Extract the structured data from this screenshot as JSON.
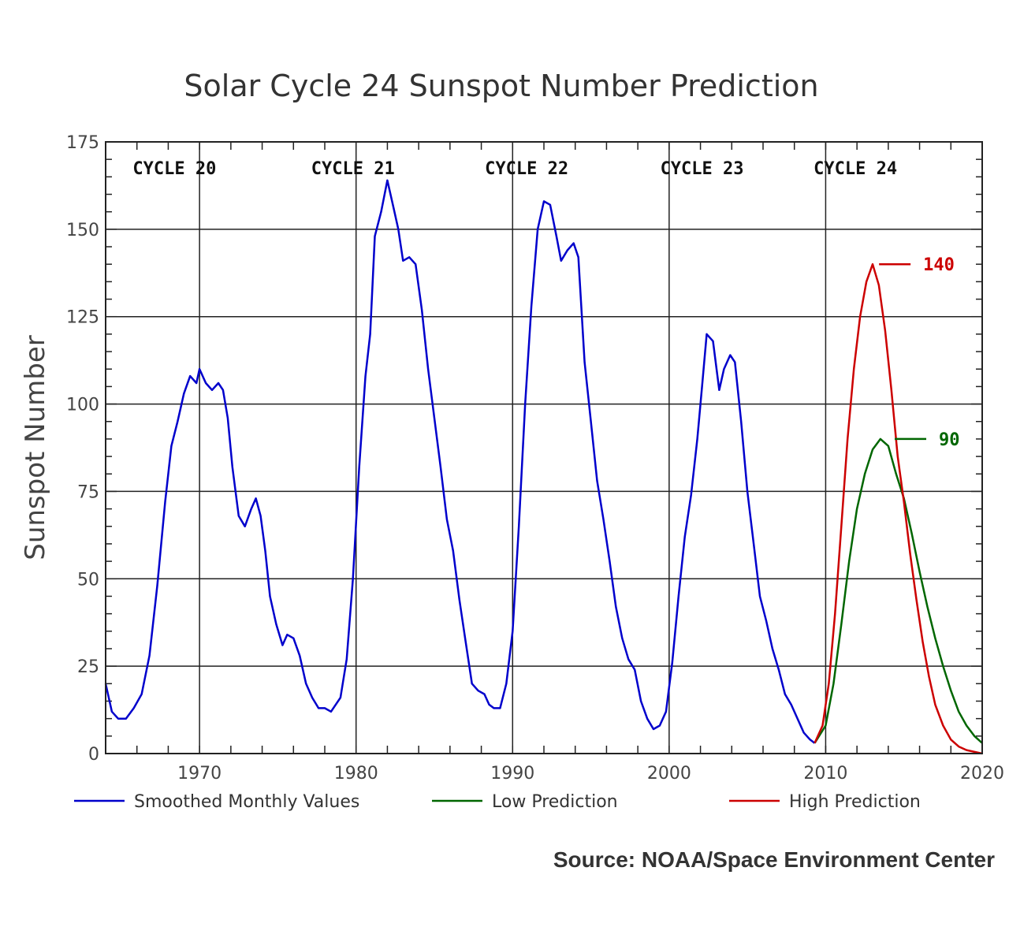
{
  "chart_data": {
    "type": "line",
    "title": "Solar Cycle 24 Sunspot Number Prediction",
    "ylabel": "Sunspot Number",
    "xlim": [
      1964,
      2020
    ],
    "ylim": [
      0,
      175
    ],
    "x_ticks": [
      "1970",
      "1980",
      "1990",
      "2000",
      "2010",
      "2020"
    ],
    "y_ticks": [
      "175",
      "150",
      "125",
      "100",
      "75",
      "50",
      "25",
      "0"
    ],
    "grid": true,
    "legend_position": "bottom",
    "cycle_labels": [
      {
        "text": "CYCLE 20",
        "x": 1968.4
      },
      {
        "text": "CYCLE 21",
        "x": 1979.8
      },
      {
        "text": "CYCLE 22",
        "x": 1990.9
      },
      {
        "text": "CYCLE 23",
        "x": 2002.1
      },
      {
        "text": "CYCLE 24",
        "x": 2011.9
      }
    ],
    "annotations": [
      {
        "text": "140",
        "x": 2011.9,
        "y": 140,
        "color": "#cc0000"
      },
      {
        "text": "90",
        "x": 2012.9,
        "y": 90,
        "color": "#006600"
      }
    ],
    "series": [
      {
        "name": "Smoothed Monthly Values",
        "color": "#0000cc",
        "points": [
          [
            1964.0,
            20
          ],
          [
            1964.4,
            12
          ],
          [
            1964.8,
            10
          ],
          [
            1965.3,
            10
          ],
          [
            1965.8,
            13
          ],
          [
            1966.3,
            17
          ],
          [
            1966.8,
            28
          ],
          [
            1967.3,
            48
          ],
          [
            1967.8,
            72
          ],
          [
            1968.2,
            88
          ],
          [
            1968.6,
            95
          ],
          [
            1969.0,
            103
          ],
          [
            1969.4,
            108
          ],
          [
            1969.8,
            106
          ],
          [
            1970.0,
            110
          ],
          [
            1970.4,
            106
          ],
          [
            1970.8,
            104
          ],
          [
            1971.2,
            106
          ],
          [
            1971.5,
            104
          ],
          [
            1971.8,
            96
          ],
          [
            1972.1,
            82
          ],
          [
            1972.5,
            68
          ],
          [
            1972.9,
            65
          ],
          [
            1973.3,
            70
          ],
          [
            1973.6,
            73
          ],
          [
            1973.9,
            68
          ],
          [
            1974.2,
            58
          ],
          [
            1974.5,
            45
          ],
          [
            1974.9,
            37
          ],
          [
            1975.3,
            31
          ],
          [
            1975.6,
            34
          ],
          [
            1976.0,
            33
          ],
          [
            1976.4,
            28
          ],
          [
            1976.8,
            20
          ],
          [
            1977.2,
            16
          ],
          [
            1977.6,
            13
          ],
          [
            1978.0,
            13
          ],
          [
            1978.4,
            12
          ],
          [
            1978.7,
            14
          ],
          [
            1979.0,
            16
          ],
          [
            1979.4,
            27
          ],
          [
            1979.8,
            50
          ],
          [
            1980.2,
            82
          ],
          [
            1980.6,
            108
          ],
          [
            1980.9,
            120
          ],
          [
            1981.2,
            148
          ],
          [
            1981.6,
            155
          ],
          [
            1982.0,
            164
          ],
          [
            1982.4,
            156
          ],
          [
            1982.7,
            150
          ],
          [
            1983.0,
            141
          ],
          [
            1983.4,
            142
          ],
          [
            1983.8,
            140
          ],
          [
            1984.2,
            127
          ],
          [
            1984.6,
            110
          ],
          [
            1985.0,
            96
          ],
          [
            1985.4,
            82
          ],
          [
            1985.8,
            67
          ],
          [
            1986.2,
            58
          ],
          [
            1986.6,
            44
          ],
          [
            1987.0,
            32
          ],
          [
            1987.4,
            20
          ],
          [
            1987.8,
            18
          ],
          [
            1988.2,
            17
          ],
          [
            1988.5,
            14
          ],
          [
            1988.8,
            13
          ],
          [
            1989.2,
            13
          ],
          [
            1989.6,
            20
          ],
          [
            1990.0,
            35
          ],
          [
            1990.4,
            65
          ],
          [
            1990.8,
            100
          ],
          [
            1991.2,
            128
          ],
          [
            1991.6,
            150
          ],
          [
            1992.0,
            158
          ],
          [
            1992.4,
            157
          ],
          [
            1992.8,
            148
          ],
          [
            1993.1,
            141
          ],
          [
            1993.5,
            144
          ],
          [
            1993.9,
            146
          ],
          [
            1994.2,
            142
          ],
          [
            1994.6,
            112
          ],
          [
            1995.0,
            95
          ],
          [
            1995.4,
            78
          ],
          [
            1995.8,
            67
          ],
          [
            1996.2,
            55
          ],
          [
            1996.6,
            42
          ],
          [
            1997.0,
            33
          ],
          [
            1997.4,
            27
          ],
          [
            1997.8,
            24
          ],
          [
            1998.2,
            15
          ],
          [
            1998.6,
            10
          ],
          [
            1999.0,
            7
          ],
          [
            1999.4,
            8
          ],
          [
            1999.8,
            12
          ],
          [
            2000.2,
            26
          ],
          [
            2000.6,
            45
          ],
          [
            2001.0,
            62
          ],
          [
            2001.4,
            74
          ],
          [
            2001.8,
            90
          ],
          [
            2002.1,
            105
          ],
          [
            2002.4,
            120
          ],
          [
            2002.8,
            118
          ],
          [
            2003.2,
            104
          ],
          [
            2003.5,
            110
          ],
          [
            2003.9,
            114
          ],
          [
            2004.2,
            112
          ],
          [
            2004.6,
            95
          ],
          [
            2005.0,
            75
          ],
          [
            2005.4,
            60
          ],
          [
            2005.8,
            45
          ],
          [
            2006.2,
            38
          ],
          [
            2006.6,
            30
          ],
          [
            2007.0,
            24
          ],
          [
            2007.4,
            17
          ],
          [
            2007.8,
            14
          ],
          [
            2008.2,
            10
          ],
          [
            2008.6,
            6
          ],
          [
            2009.0,
            4
          ],
          [
            2009.3,
            3
          ]
        ]
      },
      {
        "name": "Low Prediction",
        "color": "#006600",
        "points": [
          [
            2009.3,
            3
          ],
          [
            2010.0,
            8
          ],
          [
            2010.5,
            20
          ],
          [
            2011.0,
            37
          ],
          [
            2011.5,
            55
          ],
          [
            2012.0,
            70
          ],
          [
            2012.5,
            80
          ],
          [
            2013.0,
            87
          ],
          [
            2013.5,
            90
          ],
          [
            2014.0,
            88
          ],
          [
            2014.5,
            80
          ],
          [
            2015.0,
            73
          ],
          [
            2015.5,
            63
          ],
          [
            2016.0,
            52
          ],
          [
            2016.5,
            42
          ],
          [
            2017.0,
            33
          ],
          [
            2017.5,
            25
          ],
          [
            2018.0,
            18
          ],
          [
            2018.5,
            12
          ],
          [
            2019.0,
            8
          ],
          [
            2019.5,
            5
          ],
          [
            2020.0,
            3
          ]
        ]
      },
      {
        "name": "High Prediction",
        "color": "#cc0000",
        "points": [
          [
            2009.3,
            3
          ],
          [
            2009.8,
            8
          ],
          [
            2010.2,
            20
          ],
          [
            2010.6,
            40
          ],
          [
            2011.0,
            65
          ],
          [
            2011.4,
            90
          ],
          [
            2011.8,
            110
          ],
          [
            2012.2,
            125
          ],
          [
            2012.6,
            135
          ],
          [
            2013.0,
            140
          ],
          [
            2013.4,
            134
          ],
          [
            2013.8,
            121
          ],
          [
            2014.2,
            104
          ],
          [
            2014.6,
            85
          ],
          [
            2015.0,
            72
          ],
          [
            2015.4,
            57
          ],
          [
            2015.8,
            44
          ],
          [
            2016.2,
            32
          ],
          [
            2016.6,
            22
          ],
          [
            2017.0,
            14
          ],
          [
            2017.5,
            8
          ],
          [
            2018.0,
            4
          ],
          [
            2018.5,
            2
          ],
          [
            2019.0,
            1
          ],
          [
            2020.0,
            0
          ]
        ]
      }
    ]
  },
  "source": "Source: NOAA/Space Environment Center"
}
